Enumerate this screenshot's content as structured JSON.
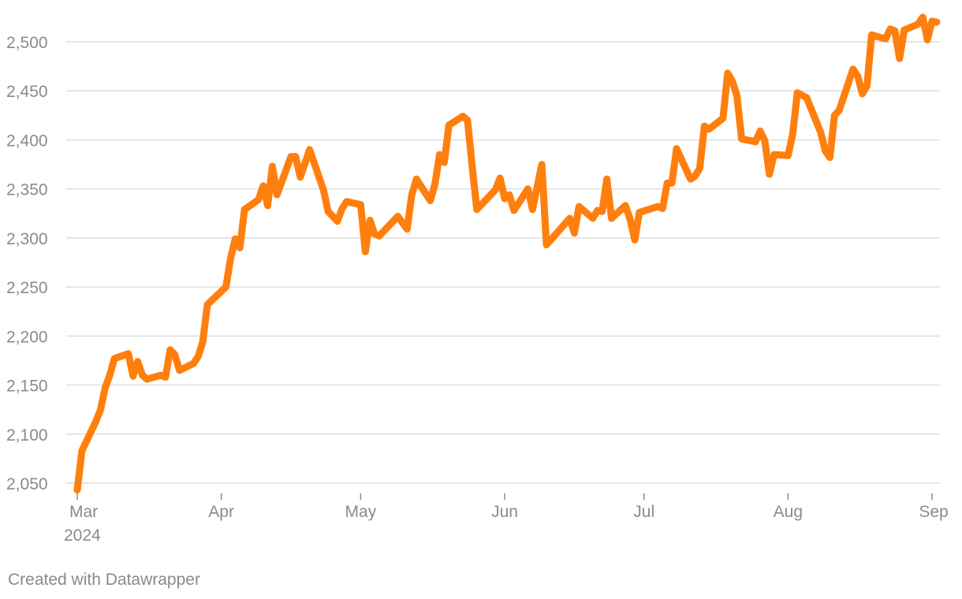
{
  "colors": {
    "line": "#ff7f0e",
    "grid": "#dedede",
    "text": "#8a8a8a"
  },
  "credit": "Created with Datawrapper",
  "chart_data": {
    "type": "line",
    "title": "",
    "xlabel": "",
    "ylabel": "",
    "grid": true,
    "ylim": [
      2040,
      2530
    ],
    "y_ticks": [
      2050,
      2100,
      2150,
      2200,
      2250,
      2300,
      2350,
      2400,
      2450,
      2500
    ],
    "y_tick_labels": [
      "2,050",
      "2,100",
      "2,150",
      "2,200",
      "2,250",
      "2,300",
      "2,350",
      "2,400",
      "2,450",
      "2,500"
    ],
    "x_range": [
      "2024-03-01",
      "2024-09-01"
    ],
    "x_ticks": [
      {
        "date": "2024-03-01",
        "label": "Mar",
        "sublabel": "2024"
      },
      {
        "date": "2024-04-01",
        "label": "Apr",
        "sublabel": ""
      },
      {
        "date": "2024-05-01",
        "label": "May",
        "sublabel": ""
      },
      {
        "date": "2024-06-01",
        "label": "Jun",
        "sublabel": ""
      },
      {
        "date": "2024-07-01",
        "label": "Jul",
        "sublabel": ""
      },
      {
        "date": "2024-08-01",
        "label": "Aug",
        "sublabel": ""
      },
      {
        "date": "2024-09-01",
        "label": "Sep",
        "sublabel": ""
      }
    ],
    "series": [
      {
        "color": "#ff7f0e",
        "points": [
          [
            "2024-03-01",
            2043
          ],
          [
            "2024-03-02",
            2083
          ],
          [
            "2024-03-05",
            2113
          ],
          [
            "2024-03-06",
            2125
          ],
          [
            "2024-03-07",
            2147
          ],
          [
            "2024-03-08",
            2160
          ],
          [
            "2024-03-09",
            2177
          ],
          [
            "2024-03-12",
            2182
          ],
          [
            "2024-03-13",
            2159
          ],
          [
            "2024-03-14",
            2174
          ],
          [
            "2024-03-15",
            2160
          ],
          [
            "2024-03-16",
            2156
          ],
          [
            "2024-03-19",
            2160
          ],
          [
            "2024-03-20",
            2158
          ],
          [
            "2024-03-21",
            2186
          ],
          [
            "2024-03-22",
            2181
          ],
          [
            "2024-03-23",
            2165
          ],
          [
            "2024-03-26",
            2172
          ],
          [
            "2024-03-27",
            2179
          ],
          [
            "2024-03-28",
            2194
          ],
          [
            "2024-03-29",
            2232
          ],
          [
            "2024-04-02",
            2250
          ],
          [
            "2024-04-03",
            2279
          ],
          [
            "2024-04-04",
            2299
          ],
          [
            "2024-04-05",
            2290
          ],
          [
            "2024-04-06",
            2329
          ],
          [
            "2024-04-09",
            2339
          ],
          [
            "2024-04-10",
            2353
          ],
          [
            "2024-04-11",
            2333
          ],
          [
            "2024-04-12",
            2373
          ],
          [
            "2024-04-13",
            2344
          ],
          [
            "2024-04-16",
            2383
          ],
          [
            "2024-04-17",
            2383
          ],
          [
            "2024-04-18",
            2362
          ],
          [
            "2024-04-20",
            2390
          ],
          [
            "2024-04-23",
            2349
          ],
          [
            "2024-04-24",
            2327
          ],
          [
            "2024-04-26",
            2317
          ],
          [
            "2024-04-27",
            2330
          ],
          [
            "2024-04-28",
            2337
          ],
          [
            "2024-05-01",
            2334
          ],
          [
            "2024-05-02",
            2286
          ],
          [
            "2024-05-03",
            2318
          ],
          [
            "2024-05-04",
            2304
          ],
          [
            "2024-05-05",
            2302
          ],
          [
            "2024-05-09",
            2322
          ],
          [
            "2024-05-11",
            2309
          ],
          [
            "2024-05-12",
            2344
          ],
          [
            "2024-05-13",
            2360
          ],
          [
            "2024-05-16",
            2338
          ],
          [
            "2024-05-17",
            2355
          ],
          [
            "2024-05-18",
            2385
          ],
          [
            "2024-05-19",
            2377
          ],
          [
            "2024-05-20",
            2415
          ],
          [
            "2024-05-23",
            2424
          ],
          [
            "2024-05-24",
            2420
          ],
          [
            "2024-05-25",
            2373
          ],
          [
            "2024-05-26",
            2329
          ],
          [
            "2024-05-30",
            2349
          ],
          [
            "2024-05-31",
            2361
          ],
          [
            "2024-06-01",
            2340
          ],
          [
            "2024-06-02",
            2344
          ],
          [
            "2024-06-03",
            2328
          ],
          [
            "2024-06-06",
            2350
          ],
          [
            "2024-06-07",
            2329
          ],
          [
            "2024-06-09",
            2375
          ],
          [
            "2024-06-10",
            2293
          ],
          [
            "2024-06-15",
            2320
          ],
          [
            "2024-06-16",
            2305
          ],
          [
            "2024-06-17",
            2332
          ],
          [
            "2024-06-20",
            2320
          ],
          [
            "2024-06-21",
            2328
          ],
          [
            "2024-06-22",
            2327
          ],
          [
            "2024-06-23",
            2360
          ],
          [
            "2024-06-24",
            2320
          ],
          [
            "2024-06-27",
            2333
          ],
          [
            "2024-06-28",
            2319
          ],
          [
            "2024-06-29",
            2298
          ],
          [
            "2024-06-30",
            2326
          ],
          [
            "2024-07-04",
            2332
          ],
          [
            "2024-07-05",
            2330
          ],
          [
            "2024-07-06",
            2356
          ],
          [
            "2024-07-07",
            2356
          ],
          [
            "2024-07-08",
            2391
          ],
          [
            "2024-07-11",
            2360
          ],
          [
            "2024-07-12",
            2363
          ],
          [
            "2024-07-13",
            2371
          ],
          [
            "2024-07-14",
            2414
          ],
          [
            "2024-07-15",
            2411
          ],
          [
            "2024-07-18",
            2422
          ],
          [
            "2024-07-19",
            2468
          ],
          [
            "2024-07-20",
            2460
          ],
          [
            "2024-07-21",
            2445
          ],
          [
            "2024-07-22",
            2401
          ],
          [
            "2024-07-25",
            2398
          ],
          [
            "2024-07-26",
            2409
          ],
          [
            "2024-07-27",
            2399
          ],
          [
            "2024-07-28",
            2365
          ],
          [
            "2024-07-29",
            2385
          ],
          [
            "2024-08-01",
            2384
          ],
          [
            "2024-08-02",
            2406
          ],
          [
            "2024-08-03",
            2448
          ],
          [
            "2024-08-05",
            2443
          ],
          [
            "2024-08-08",
            2408
          ],
          [
            "2024-08-09",
            2389
          ],
          [
            "2024-08-10",
            2382
          ],
          [
            "2024-08-11",
            2425
          ],
          [
            "2024-08-12",
            2430
          ],
          [
            "2024-08-15",
            2472
          ],
          [
            "2024-08-16",
            2465
          ],
          [
            "2024-08-17",
            2447
          ],
          [
            "2024-08-18",
            2455
          ],
          [
            "2024-08-19",
            2507
          ],
          [
            "2024-08-22",
            2503
          ],
          [
            "2024-08-23",
            2513
          ],
          [
            "2024-08-24",
            2511
          ],
          [
            "2024-08-25",
            2483
          ],
          [
            "2024-08-26",
            2512
          ],
          [
            "2024-08-29",
            2518
          ],
          [
            "2024-08-30",
            2525
          ],
          [
            "2024-08-31",
            2502
          ],
          [
            "2024-09-01",
            2521
          ],
          [
            "2024-09-02",
            2520
          ]
        ]
      }
    ]
  }
}
